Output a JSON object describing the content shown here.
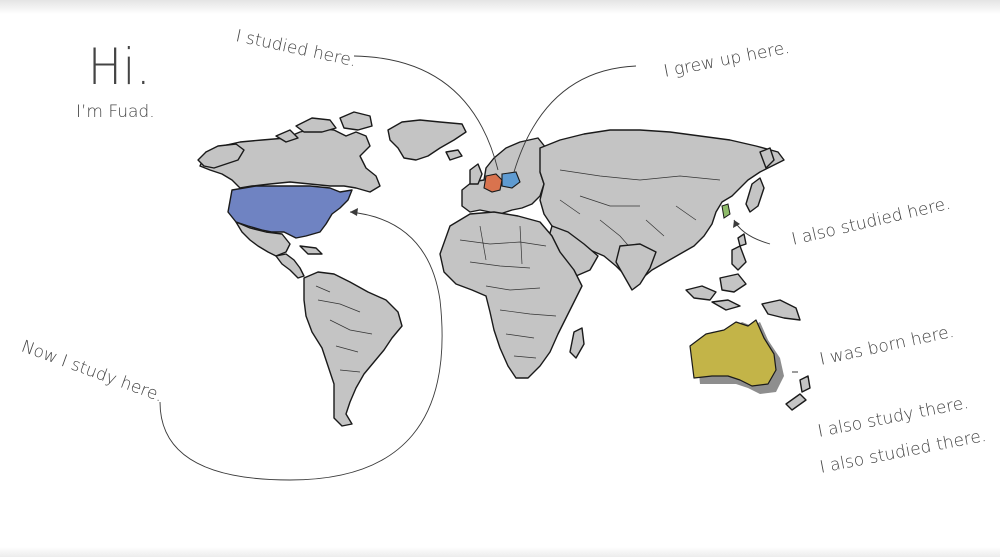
{
  "greeting": {
    "title": "Hi.",
    "subtitle": "I’m Fuad."
  },
  "annotations": {
    "studied_europe": "I studied here.",
    "grew_up": "I grew up here.",
    "also_studied_korea": "I also studied here.",
    "born": "I was born here.",
    "also_study_there": "I also study there.",
    "also_studied_there": "I also studied there.",
    "now_study": "Now I study here."
  },
  "highlight_colors": {
    "usa": "#6f83c2",
    "germany": "#d9734e",
    "poland": "#5f9bd1",
    "korea": "#8fbc6a",
    "australia": "#c3b448",
    "land": "#c4c4c4"
  }
}
